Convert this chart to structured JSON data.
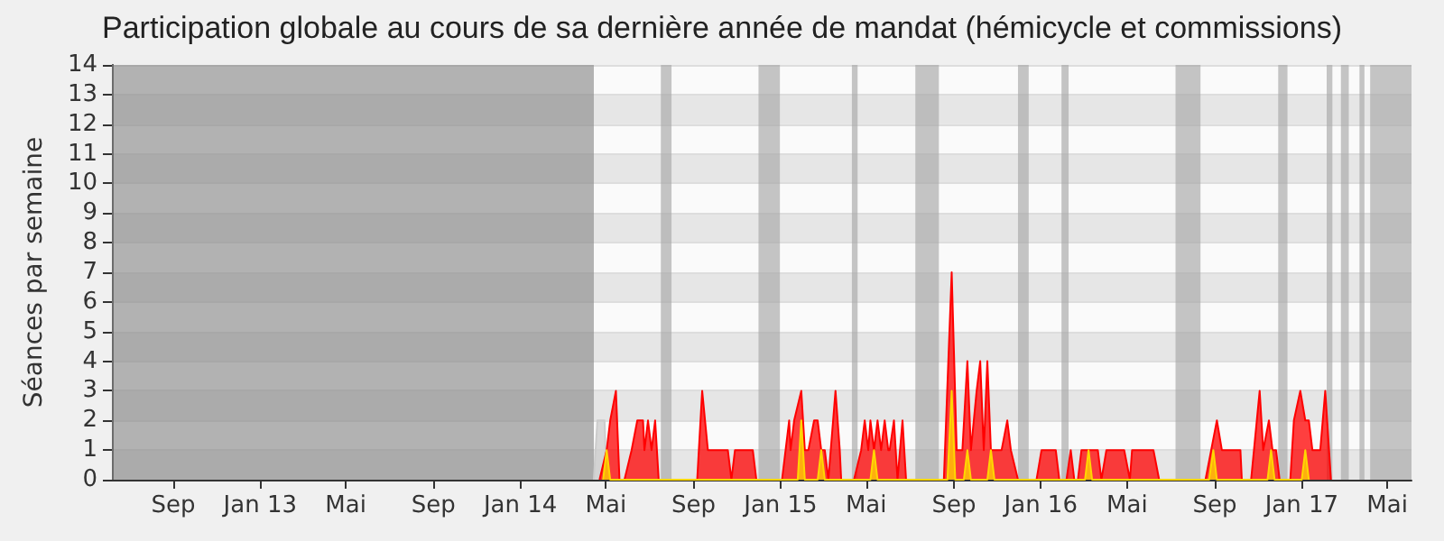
{
  "chart_data": {
    "type": "area",
    "title": "Participation globale au cours de sa dernière année de mandat (hémicycle et commissions)",
    "ylabel": "Séances par semaine",
    "xlim": [
      "2012-06-07",
      "2017-06-04"
    ],
    "ylim": [
      0,
      14
    ],
    "yticks": [
      0,
      1,
      2,
      3,
      4,
      5,
      6,
      7,
      8,
      9,
      10,
      11,
      12,
      13,
      14
    ],
    "xticks": [
      {
        "value": "2012-09-01",
        "label": "Sep"
      },
      {
        "value": "2013-01-01",
        "label": "Jan 13"
      },
      {
        "value": "2013-05-01",
        "label": "Mai"
      },
      {
        "value": "2013-09-01",
        "label": "Sep"
      },
      {
        "value": "2014-01-01",
        "label": "Jan 14"
      },
      {
        "value": "2014-05-01",
        "label": "Mai"
      },
      {
        "value": "2014-09-01",
        "label": "Sep"
      },
      {
        "value": "2015-01-01",
        "label": "Jan 15"
      },
      {
        "value": "2015-05-01",
        "label": "Mai"
      },
      {
        "value": "2015-09-01",
        "label": "Sep"
      },
      {
        "value": "2016-01-01",
        "label": "Jan 16"
      },
      {
        "value": "2016-05-01",
        "label": "Mai"
      },
      {
        "value": "2016-09-01",
        "label": "Sep"
      },
      {
        "value": "2017-01-01",
        "label": "Jan 17"
      },
      {
        "value": "2017-05-01",
        "label": "Mai"
      }
    ],
    "grid": "y",
    "marker": "none",
    "bands": [
      {
        "axis": "x",
        "from": "2012-06-07",
        "to": "2014-04-14",
        "color": "#8c8c8c"
      },
      {
        "axis": "x",
        "from": "2014-07-17",
        "to": "2014-08-01",
        "color": "#a8a8a8"
      },
      {
        "axis": "x",
        "from": "2014-12-01",
        "to": "2014-12-31",
        "color": "#a8a8a8"
      },
      {
        "axis": "x",
        "from": "2015-04-11",
        "to": "2015-04-19",
        "color": "#a8a8a8"
      },
      {
        "axis": "x",
        "from": "2015-07-09",
        "to": "2015-08-11",
        "color": "#a8a8a8"
      },
      {
        "axis": "x",
        "from": "2015-11-30",
        "to": "2015-12-15",
        "color": "#a8a8a8"
      },
      {
        "axis": "x",
        "from": "2016-01-30",
        "to": "2016-02-09",
        "color": "#a8a8a8"
      },
      {
        "axis": "x",
        "from": "2016-07-08",
        "to": "2016-08-12",
        "color": "#a8a8a8"
      },
      {
        "axis": "x",
        "from": "2016-11-29",
        "to": "2016-12-12",
        "color": "#a8a8a8"
      },
      {
        "axis": "x",
        "from": "2017-02-05",
        "to": "2017-02-13",
        "color": "#a8a8a8"
      },
      {
        "axis": "x",
        "from": "2017-02-25",
        "to": "2017-03-08",
        "color": "#a8a8a8"
      },
      {
        "axis": "x",
        "from": "2017-03-23",
        "to": "2017-03-30",
        "color": "#a8a8a8"
      },
      {
        "axis": "x",
        "from": "2017-04-07",
        "to": "2017-06-04",
        "color": "#a8a8a8"
      }
    ],
    "series": [
      {
        "color": "#cccccc",
        "x": [
          "2014-04-14",
          "2014-04-19",
          "2014-04-29",
          "2014-05-02"
        ],
        "values": [
          0,
          2,
          2,
          0
        ]
      },
      {
        "color": "#ff0000",
        "x": [
          "2014-04-22",
          "2014-05-02",
          "2014-05-07",
          "2014-05-15",
          "2014-05-20",
          "2014-05-27",
          "2014-06-06",
          "2014-06-14",
          "2014-06-22",
          "2014-06-24",
          "2014-06-29",
          "2014-07-04",
          "2014-07-09",
          "2014-07-14",
          "2014-09-06",
          "2014-09-13",
          "2014-09-21",
          "2014-10-19",
          "2014-10-24",
          "2014-10-29",
          "2014-11-23",
          "2014-11-28",
          "2015-01-03",
          "2015-01-08",
          "2015-01-13",
          "2015-01-15",
          "2015-01-20",
          "2015-01-30",
          "2015-02-04",
          "2015-02-09",
          "2015-02-17",
          "2015-02-22",
          "2015-02-27",
          "2015-03-04",
          "2015-03-09",
          "2015-03-19",
          "2015-03-25",
          "2015-03-27",
          "2015-04-14",
          "2015-04-24",
          "2015-04-29",
          "2015-05-04",
          "2015-05-07",
          "2015-05-12",
          "2015-05-17",
          "2015-05-22",
          "2015-05-27",
          "2015-06-01",
          "2015-06-03",
          "2015-06-09",
          "2015-06-14",
          "2015-06-21",
          "2015-06-26",
          "2015-08-18",
          "2015-08-29",
          "2015-09-05",
          "2015-09-13",
          "2015-09-20",
          "2015-09-25",
          "2015-10-03",
          "2015-10-08",
          "2015-10-13",
          "2015-10-18",
          "2015-10-23",
          "2015-11-07",
          "2015-11-15",
          "2015-11-20",
          "2015-11-30",
          "2015-12-26",
          "2016-01-02",
          "2016-01-22",
          "2016-01-27",
          "2016-02-06",
          "2016-02-12",
          "2016-02-17",
          "2016-02-22",
          "2016-02-27",
          "2016-03-21",
          "2016-03-26",
          "2016-04-02",
          "2016-04-27",
          "2016-05-05",
          "2016-05-08",
          "2016-06-07",
          "2016-06-15",
          "2016-08-19",
          "2016-08-27",
          "2016-09-04",
          "2016-09-11",
          "2016-10-07",
          "2016-10-09",
          "2016-10-22",
          "2016-11-03",
          "2016-11-08",
          "2016-11-16",
          "2016-11-21",
          "2016-11-26",
          "2016-12-01",
          "2016-12-16",
          "2016-12-21",
          "2016-12-30",
          "2017-01-06",
          "2017-01-11",
          "2017-01-16",
          "2017-01-27",
          "2017-02-03",
          "2017-02-11"
        ],
        "values": [
          0,
          1,
          2,
          3,
          0,
          0,
          1,
          2,
          2,
          1,
          2,
          1,
          2,
          0,
          0,
          3,
          1,
          1,
          0,
          1,
          1,
          0,
          0,
          1,
          2,
          1,
          2,
          3,
          1,
          1,
          2,
          2,
          1,
          1,
          0,
          3,
          1,
          0,
          0,
          1,
          2,
          1,
          2,
          1,
          2,
          1,
          2,
          1,
          1,
          2,
          0,
          2,
          0,
          0,
          7,
          1,
          1,
          4,
          1,
          3,
          4,
          1,
          4,
          1,
          1,
          2,
          1,
          0,
          0,
          1,
          1,
          0,
          0,
          1,
          0,
          0,
          1,
          1,
          0,
          1,
          1,
          0,
          1,
          1,
          0,
          0,
          1,
          2,
          1,
          1,
          0,
          0,
          3,
          1,
          2,
          1,
          1,
          0,
          0,
          2,
          3,
          2,
          2,
          1,
          1,
          3,
          0
        ]
      },
      {
        "color": "#ffd700",
        "x": [
          "2014-04-27",
          "2014-05-02",
          "2014-05-07",
          "2015-01-25",
          "2015-01-30",
          "2015-02-04",
          "2015-02-22",
          "2015-02-27",
          "2015-03-04",
          "2015-05-07",
          "2015-05-12",
          "2015-05-17",
          "2015-08-23",
          "2015-08-29",
          "2015-09-03",
          "2015-09-15",
          "2015-09-20",
          "2015-09-25",
          "2015-10-18",
          "2015-10-23",
          "2015-10-28",
          "2016-03-03",
          "2016-03-08",
          "2016-03-13",
          "2016-08-24",
          "2016-08-30",
          "2016-09-04",
          "2016-11-14",
          "2016-11-19",
          "2016-11-24",
          "2017-01-01",
          "2017-01-06",
          "2017-01-11"
        ],
        "values": [
          0,
          1,
          0,
          0,
          2,
          0,
          0,
          1,
          0,
          0,
          1,
          0,
          0,
          3,
          0,
          0,
          1,
          0,
          0,
          1,
          0,
          0,
          1,
          0,
          0,
          1,
          0,
          0,
          1,
          0,
          0,
          1,
          0
        ]
      }
    ]
  }
}
